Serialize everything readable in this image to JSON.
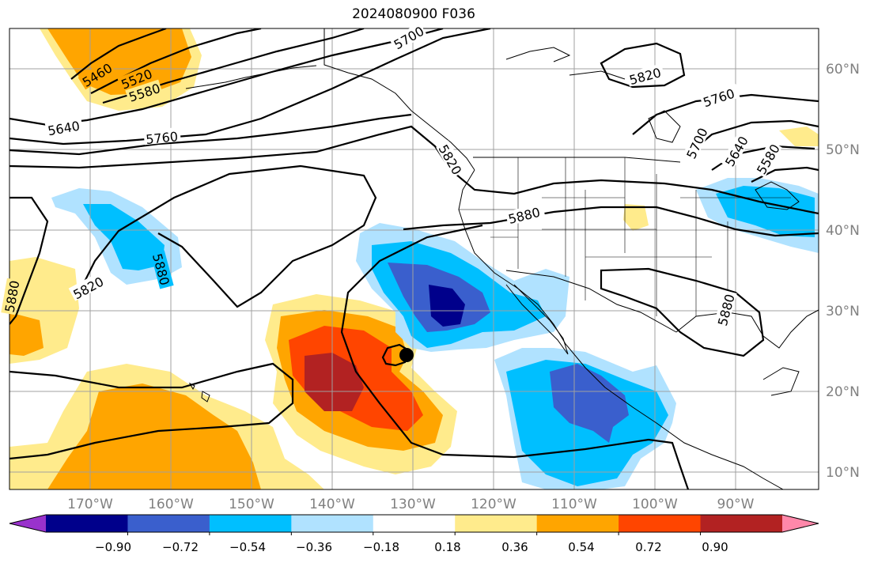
{
  "title": "2024080900 F036",
  "map": {
    "longitude_labels": [
      "170°W",
      "160°W",
      "150°W",
      "140°W",
      "130°W",
      "120°W",
      "110°W",
      "100°W",
      "90°W"
    ],
    "latitude_labels": [
      "60°N",
      "50°N",
      "40°N",
      "30°N",
      "20°N",
      "10°N"
    ],
    "grid": true,
    "contour_labels": [
      "5460",
      "5520",
      "5580",
      "5640",
      "5700",
      "5760",
      "5820",
      "5880",
      "5820",
      "5760",
      "5700",
      "5640",
      "5580",
      "5820",
      "5880",
      "5880",
      "5880",
      "5880"
    ]
  },
  "colorbar": {
    "ticks": [
      "−0.90",
      "−0.72",
      "−0.54",
      "−0.36",
      "−0.18",
      "0.18",
      "0.36",
      "0.54",
      "0.72",
      "0.90"
    ],
    "colors": [
      "#9932cc",
      "#00008b",
      "#3a5fcd",
      "#00bfff",
      "#b0e2ff",
      "#ffffff",
      "#ffeb8c",
      "#ffa500",
      "#ff4500",
      "#b22222",
      "#ff88aa"
    ]
  },
  "colors": {
    "dark_blue": "#00008b",
    "blue": "#3a5fcd",
    "sky": "#00bfff",
    "light_sky": "#b0e2ff",
    "light_yellow": "#ffeb8c",
    "orange": "#ffa500",
    "red_orange": "#ff4500",
    "firebrick": "#b22222"
  }
}
